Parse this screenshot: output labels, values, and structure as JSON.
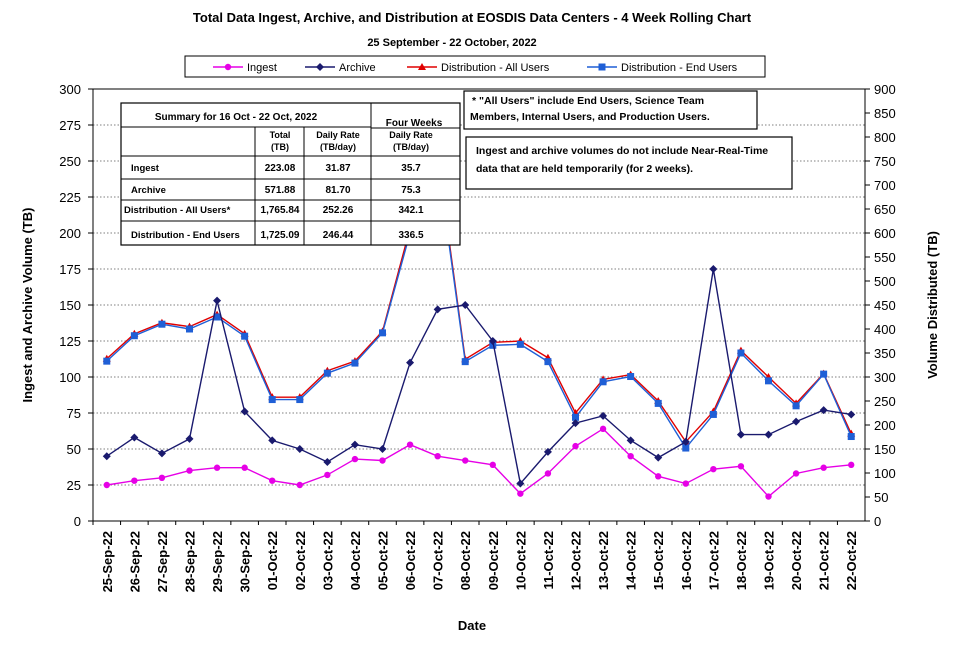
{
  "chart_data": {
    "type": "line",
    "title": "Total Data Ingest, Archive, and  Distribution at EOSDIS Data Centers - 4 Week Rolling Chart",
    "subtitle": "25 September  -  22 October, 2022",
    "xlabel": "Date",
    "ylabel": "Ingest and Archive Volume (TB)",
    "y2label": "Volume Distributed (TB)",
    "ylim": [
      0,
      300
    ],
    "y2lim": [
      0,
      900
    ],
    "yticks": [
      0,
      25,
      50,
      75,
      100,
      125,
      150,
      175,
      200,
      225,
      250,
      275,
      300
    ],
    "y2ticks": [
      0,
      50,
      100,
      150,
      200,
      250,
      300,
      350,
      400,
      450,
      500,
      550,
      600,
      650,
      700,
      750,
      800,
      850,
      900
    ],
    "grid": "horizontal dotted",
    "legend_position": "top",
    "categories": [
      "25-Sep-22",
      "26-Sep-22",
      "27-Sep-22",
      "28-Sep-22",
      "29-Sep-22",
      "30-Sep-22",
      "01-Oct-22",
      "02-Oct-22",
      "03-Oct-22",
      "04-Oct-22",
      "05-Oct-22",
      "06-Oct-22",
      "07-Oct-22",
      "08-Oct-22",
      "09-Oct-22",
      "10-Oct-22",
      "11-Oct-22",
      "12-Oct-22",
      "13-Oct-22",
      "14-Oct-22",
      "15-Oct-22",
      "16-Oct-22",
      "17-Oct-22",
      "18-Oct-22",
      "19-Oct-22",
      "20-Oct-22",
      "21-Oct-22",
      "22-Oct-22"
    ],
    "series": [
      {
        "name": "Ingest",
        "axis": "left",
        "color": "#e600e6",
        "marker": "circle",
        "values": [
          25,
          28,
          30,
          35,
          37,
          37,
          28,
          25,
          32,
          43,
          42,
          53,
          45,
          42,
          39,
          19,
          33,
          52,
          64,
          45,
          31,
          26,
          36,
          38,
          17,
          33,
          37,
          39
        ]
      },
      {
        "name": "Archive",
        "axis": "left",
        "color": "#1a1a6e",
        "marker": "diamond",
        "values": [
          45,
          58,
          47,
          57,
          153,
          76,
          56,
          50,
          41,
          53,
          50,
          110,
          147,
          150,
          125,
          26,
          48,
          68,
          73,
          56,
          44,
          55,
          175,
          60,
          60,
          69,
          77,
          74
        ]
      },
      {
        "name": "Distribution - All Users",
        "axis": "right",
        "color": "#e00000",
        "marker": "triangle",
        "values": [
          338,
          390,
          413,
          405,
          430,
          390,
          258,
          258,
          313,
          333,
          395,
          610,
          760,
          337,
          372,
          375,
          340,
          225,
          295,
          305,
          250,
          165,
          228,
          355,
          300,
          245,
          307,
          182
        ]
      },
      {
        "name": "Distribution - End Users",
        "axis": "right",
        "color": "#1f5fd6",
        "marker": "square",
        "values": [
          333,
          386,
          410,
          400,
          425,
          385,
          253,
          253,
          308,
          329,
          392,
          600,
          750,
          332,
          366,
          368,
          332,
          216,
          290,
          301,
          245,
          152,
          222,
          350,
          292,
          240,
          306,
          176
        ]
      }
    ],
    "annotations": {
      "note1": "* \"All Users\" include End Users, Science Team Members,  Internal Users, and Production Users.",
      "note2": "Ingest and archive volumes do not include Near-Real-Time data that are held temporarily (for 2 weeks)."
    },
    "summary_table": {
      "header_left": "Summary for 16 Oct  - 22 Oct, 2022",
      "header_right": "Four Weeks",
      "col1": "Total (TB)",
      "col2": "Daily Rate (TB/day)",
      "col3": "Daily Rate (TB/day)",
      "rows": [
        {
          "label": "Ingest",
          "total": "223.08",
          "daily": "31.87",
          "four_weeks": "35.7"
        },
        {
          "label": "Archive",
          "total": "571.88",
          "daily": "81.70",
          "four_weeks": "75.3"
        },
        {
          "label": "Distribution - All Users*",
          "total": "1,765.84",
          "daily": "252.26",
          "four_weeks": "342.1"
        },
        {
          "label": "Distribution - End Users",
          "total": "1,725.09",
          "daily": "246.44",
          "four_weeks": "336.5"
        }
      ]
    }
  }
}
